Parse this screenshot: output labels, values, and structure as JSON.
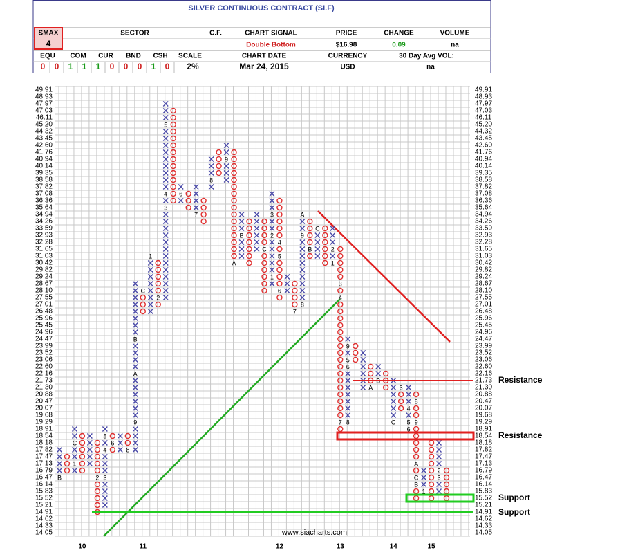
{
  "header": {
    "title": "SILVER CONTINUOUS CONTRACT (SI.F)",
    "smax_label": "SMAX",
    "smax": "4",
    "sector_label": "SECTOR",
    "cf_label": "C.F.",
    "signal_label": "CHART SIGNAL",
    "signal": "Double Bottom",
    "price_label": "PRICE",
    "price": "$16.98",
    "change_label": "CHANGE",
    "change": "0.09",
    "volume_label": "VOLUME",
    "volume": "na",
    "alloc_labels": [
      "EQU",
      "COM",
      "CUR",
      "BND",
      "CSH"
    ],
    "alloc_values": [
      "0",
      "0",
      "1",
      "1",
      "1",
      "0",
      "0",
      "0",
      "1",
      "0"
    ],
    "scale_label": "SCALE",
    "scale": "2%",
    "date_label": "CHART DATE",
    "date": "Mar 24, 2015",
    "currency_label": "CURRENCY",
    "currency": "USD",
    "avgvol_label": "30 Day Avg VOL:",
    "avgvol": "na"
  },
  "chart_data": {
    "type": "point_and_figure",
    "source": "www.siacharts.com",
    "x_color": "#4a4aa8",
    "o_color": "#e03030",
    "yticks": [
      49.91,
      48.93,
      47.97,
      47.03,
      46.11,
      {
        "value": 45.2,
        "label": "45.20"
      },
      44.32,
      43.45,
      {
        "value": 42.6,
        "label": "42.60"
      },
      41.76,
      40.94,
      40.14,
      39.35,
      38.58,
      37.82,
      37.08,
      36.36,
      35.64,
      34.94,
      34.26,
      33.59,
      32.93,
      32.28,
      31.65,
      31.03,
      30.42,
      29.82,
      29.24,
      28.67,
      {
        "value": 28.1,
        "label": "28.10"
      },
      27.55,
      27.01,
      26.48,
      25.96,
      25.45,
      24.96,
      24.47,
      23.99,
      23.52,
      23.06,
      {
        "value": 22.6,
        "label": "22.60"
      },
      22.16,
      21.73,
      {
        "value": 21.3,
        "label": "21.30"
      },
      20.88,
      20.47,
      20.07,
      19.68,
      19.29,
      18.91,
      18.54,
      18.18,
      17.82,
      17.47,
      17.13,
      16.79,
      16.47,
      16.14,
      15.83,
      15.52,
      15.21,
      14.91,
      14.62,
      14.33,
      14.05
    ],
    "columns": [
      {
        "type": "X",
        "bottom": 16.47,
        "top": 17.82,
        "markers": [
          {
            "label": "B",
            "price": 16.47
          }
        ]
      },
      {
        "type": "O",
        "bottom": 16.79,
        "top": 17.47,
        "markers": []
      },
      {
        "type": "X",
        "bottom": 16.79,
        "top": 18.91,
        "markers": [
          {
            "label": "1",
            "price": 17.13
          },
          {
            "label": "C",
            "price": 18.18
          }
        ]
      },
      {
        "type": "O",
        "bottom": 16.79,
        "top": 18.54,
        "markers": [],
        "year": "10"
      },
      {
        "type": "X",
        "bottom": 17.13,
        "top": 18.54,
        "markers": []
      },
      {
        "type": "O",
        "bottom": 14.91,
        "top": 18.18,
        "markers": [
          {
            "label": "2",
            "price": 16.47
          }
        ]
      },
      {
        "type": "X",
        "bottom": 15.21,
        "top": 18.91,
        "markers": [
          {
            "label": "3",
            "price": 16.47
          },
          {
            "label": "4",
            "price": 17.82
          },
          {
            "label": "5",
            "price": 18.54
          }
        ]
      },
      {
        "type": "O",
        "bottom": 17.82,
        "top": 18.54,
        "markers": [
          {
            "label": "6",
            "price": 18.18
          }
        ]
      },
      {
        "type": "X",
        "bottom": 17.82,
        "top": 18.54,
        "markers": []
      },
      {
        "type": "O",
        "bottom": 17.82,
        "top": 18.54,
        "markers": [
          {
            "label": "8",
            "price": 17.82
          }
        ]
      },
      {
        "type": "X",
        "bottom": 17.82,
        "top": 28.67,
        "markers": [
          {
            "label": "9",
            "price": 19.29
          },
          {
            "label": "A",
            "price": 22.16
          },
          {
            "label": "B",
            "price": 24.47
          }
        ]
      },
      {
        "type": "O",
        "bottom": 26.48,
        "top": 28.1,
        "markers": [
          {
            "label": "C",
            "price": 28.1
          }
        ],
        "year": "11"
      },
      {
        "type": "X",
        "bottom": 26.48,
        "top": 31.03,
        "markers": [
          {
            "label": "1",
            "price": 31.03
          }
        ]
      },
      {
        "type": "O",
        "bottom": 27.01,
        "top": 30.42,
        "markers": [
          {
            "label": "2",
            "price": 27.55
          }
        ]
      },
      {
        "type": "X",
        "bottom": 27.55,
        "top": 47.97,
        "markers": [
          {
            "label": "3",
            "price": 35.64
          },
          {
            "label": "4",
            "price": 37.08
          },
          {
            "label": "5",
            "price": 45.2
          }
        ]
      },
      {
        "type": "O",
        "bottom": 36.36,
        "top": 47.03,
        "markers": []
      },
      {
        "type": "X",
        "bottom": 36.36,
        "top": 37.82,
        "markers": [
          {
            "label": "6",
            "price": 37.08
          }
        ]
      },
      {
        "type": "O",
        "bottom": 35.64,
        "top": 37.08,
        "markers": []
      },
      {
        "type": "X",
        "bottom": 34.94,
        "top": 37.82,
        "markers": [
          {
            "label": "7",
            "price": 34.94
          }
        ]
      },
      {
        "type": "O",
        "bottom": 34.26,
        "top": 36.36,
        "markers": []
      },
      {
        "type": "X",
        "bottom": 37.82,
        "top": 40.94,
        "markers": [
          {
            "label": "8",
            "price": 38.58
          }
        ]
      },
      {
        "type": "O",
        "bottom": 39.35,
        "top": 41.76,
        "markers": []
      },
      {
        "type": "X",
        "bottom": 38.58,
        "top": 42.6,
        "markers": [
          {
            "label": "9",
            "price": 40.94
          }
        ]
      },
      {
        "type": "O",
        "bottom": 30.42,
        "top": 41.76,
        "markers": [
          {
            "label": "A",
            "price": 30.42
          }
        ]
      },
      {
        "type": "X",
        "bottom": 31.03,
        "top": 34.94,
        "markers": [
          {
            "label": "B",
            "price": 32.93
          }
        ]
      },
      {
        "type": "O",
        "bottom": 30.42,
        "top": 34.26,
        "markers": []
      },
      {
        "type": "X",
        "bottom": 31.65,
        "top": 34.94,
        "markers": []
      },
      {
        "type": "O",
        "bottom": 28.1,
        "top": 34.26,
        "markers": [
          {
            "label": "C",
            "price": 31.65
          }
        ]
      },
      {
        "type": "X",
        "bottom": 28.67,
        "top": 37.08,
        "markers": [
          {
            "label": "1",
            "price": 29.24
          },
          {
            "label": "2",
            "price": 32.93
          },
          {
            "label": "3",
            "price": 34.94
          }
        ]
      },
      {
        "type": "O",
        "bottom": 27.55,
        "top": 36.36,
        "markers": [
          {
            "label": "4",
            "price": 32.28
          },
          {
            "label": "5",
            "price": 31.03
          },
          {
            "label": "6",
            "price": 28.1
          }
        ],
        "year": "12"
      },
      {
        "type": "X",
        "bottom": 28.1,
        "top": 29.24,
        "markers": []
      },
      {
        "type": "O",
        "bottom": 26.48,
        "top": 28.67,
        "markers": [
          {
            "label": "7",
            "price": 26.48
          }
        ]
      },
      {
        "type": "X",
        "bottom": 27.01,
        "top": 34.94,
        "markers": [
          {
            "label": "8",
            "price": 27.01
          },
          {
            "label": "9",
            "price": 32.93
          },
          {
            "label": "A",
            "price": 34.94
          }
        ]
      },
      {
        "type": "O",
        "bottom": 31.03,
        "top": 34.26,
        "markers": [
          {
            "label": "B",
            "price": 31.65
          }
        ]
      },
      {
        "type": "X",
        "bottom": 31.03,
        "top": 33.59,
        "markers": [
          {
            "label": "C",
            "price": 33.59
          }
        ]
      },
      {
        "type": "O",
        "bottom": 30.42,
        "top": 33.59,
        "markers": []
      },
      {
        "type": "X",
        "bottom": 30.42,
        "top": 33.59,
        "markers": [
          {
            "label": "1",
            "price": 30.42
          },
          {
            "label": "2",
            "price": 31.65
          }
        ]
      },
      {
        "type": "O",
        "bottom": 18.91,
        "top": 31.65,
        "markers": [
          {
            "label": "3",
            "price": 28.67
          },
          {
            "label": "4",
            "price": 27.55
          },
          {
            "label": "7",
            "price": 19.29
          }
        ],
        "year": "13"
      },
      {
        "type": "X",
        "bottom": 19.29,
        "top": 24.47,
        "markers": [
          {
            "label": "8",
            "price": 19.29
          },
          {
            "label": "5",
            "price": 23.06
          },
          {
            "label": "6",
            "price": 22.6
          },
          {
            "label": "9",
            "price": 23.99
          }
        ]
      },
      {
        "type": "O",
        "bottom": 23.06,
        "top": 23.99,
        "markers": []
      },
      {
        "type": "X",
        "bottom": 21.3,
        "top": 23.52,
        "markers": []
      },
      {
        "type": "O",
        "bottom": 21.3,
        "top": 22.6,
        "markers": [
          {
            "label": "A",
            "price": 21.3
          }
        ]
      },
      {
        "type": "X",
        "bottom": 21.73,
        "top": 22.6,
        "markers": [
          {
            "label": "B",
            "price": 21.73
          }
        ]
      },
      {
        "type": "O",
        "bottom": 21.3,
        "top": 22.16,
        "markers": []
      },
      {
        "type": "X",
        "bottom": 19.29,
        "top": 21.73,
        "markers": [
          {
            "label": "C",
            "price": 19.29
          }
        ],
        "year": "14"
      },
      {
        "type": "O",
        "bottom": 20.07,
        "top": 21.3,
        "markers": [
          {
            "label": "3",
            "price": 21.3
          }
        ]
      },
      {
        "type": "X",
        "bottom": 18.91,
        "top": 21.3,
        "markers": [
          {
            "label": "4",
            "price": 20.07
          },
          {
            "label": "5",
            "price": 19.29
          },
          {
            "label": "6",
            "price": 18.91
          }
        ]
      },
      {
        "type": "O",
        "bottom": 15.52,
        "top": 20.88,
        "markers": [
          {
            "label": "8",
            "price": 20.47
          },
          {
            "label": "9",
            "price": 19.29
          },
          {
            "label": "A",
            "price": 17.13
          },
          {
            "label": "C",
            "price": 16.47
          },
          {
            "label": "B",
            "price": 16.14
          }
        ]
      },
      {
        "type": "X",
        "bottom": 15.83,
        "top": 16.79,
        "markers": [
          {
            "label": "1",
            "price": 15.83
          }
        ]
      },
      {
        "type": "O",
        "bottom": 15.52,
        "top": 18.18,
        "markers": [],
        "year": "15"
      },
      {
        "type": "X",
        "bottom": 15.83,
        "top": 18.18,
        "markers": [
          {
            "label": "2",
            "price": 16.79
          },
          {
            "label": "3",
            "price": 16.47
          }
        ]
      },
      {
        "type": "O",
        "bottom": 15.52,
        "top": 16.79,
        "markers": []
      }
    ],
    "annotations": [
      {
        "label": "Resistance",
        "price": 21.73,
        "style": "line",
        "color": "#e02020"
      },
      {
        "label": "Resistance",
        "price": 18.54,
        "style": "box",
        "color": "#e02020"
      },
      {
        "label": "Support",
        "price": 15.52,
        "style": "box",
        "color": "#22cc22"
      },
      {
        "label": "Support",
        "price": 14.91,
        "style": "line",
        "color": "#22cc22"
      }
    ]
  }
}
